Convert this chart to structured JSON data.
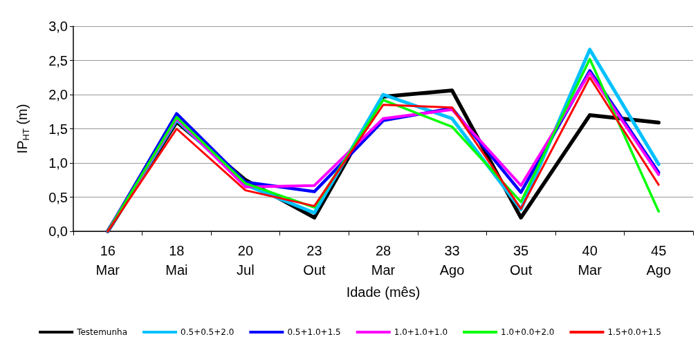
{
  "chart_data": {
    "type": "line",
    "xlabel": "Idade (mês)",
    "ylabel": "IP$_{HT}$ (m)",
    "categories": [
      "16\nMar",
      "18\nMai",
      "20\nJul",
      "23\nOut",
      "28\nMar",
      "33\nAgo",
      "35\nOut",
      "40\nMar",
      "45\nAgo"
    ],
    "series": [
      {
        "name": "Testemunha",
        "color": "#000000",
        "values": [
          0,
          1.6,
          0.75,
          0.2,
          1.97,
          2.06,
          0.2,
          1.7,
          1.59
        ]
      },
      {
        "name": "0.5+0.5+2.0",
        "color": "#00c0ff",
        "values": [
          0,
          1.63,
          0.68,
          0.27,
          2.0,
          1.65,
          0.32,
          2.66,
          0.98
        ]
      },
      {
        "name": "0.5+1.0+1.5",
        "color": "#0000ff",
        "values": [
          0,
          1.72,
          0.72,
          0.58,
          1.62,
          1.8,
          0.57,
          2.35,
          0.86
        ]
      },
      {
        "name": "1.0+1.0+1.0",
        "color": "#ff00ff",
        "values": [
          0,
          1.65,
          0.65,
          0.67,
          1.65,
          1.78,
          0.67,
          2.32,
          0.83
        ]
      },
      {
        "name": "1.0+0.0+2.0",
        "color": "#00ff00",
        "values": [
          0,
          1.67,
          0.7,
          0.35,
          1.92,
          1.53,
          0.43,
          2.52,
          0.29
        ]
      },
      {
        "name": "1.5+0.0+1.5",
        "color": "#ff0000",
        "values": [
          0,
          1.5,
          0.6,
          0.37,
          1.85,
          1.81,
          0.33,
          2.25,
          0.68
        ]
      }
    ],
    "ylim": [
      0,
      3
    ],
    "yticks": [
      {
        "value": 0,
        "label": "0,0"
      },
      {
        "value": 0.5,
        "label": "0,5"
      },
      {
        "value": 1,
        "label": "1,0"
      },
      {
        "value": 1.5,
        "label": "1,5"
      },
      {
        "value": 2,
        "label": "2,0"
      },
      {
        "value": 2.5,
        "label": "2,5"
      },
      {
        "value": 3,
        "label": "3,0"
      }
    ],
    "grid": "y",
    "legend": "bottom",
    "marker": "none",
    "line_style": "solid"
  }
}
